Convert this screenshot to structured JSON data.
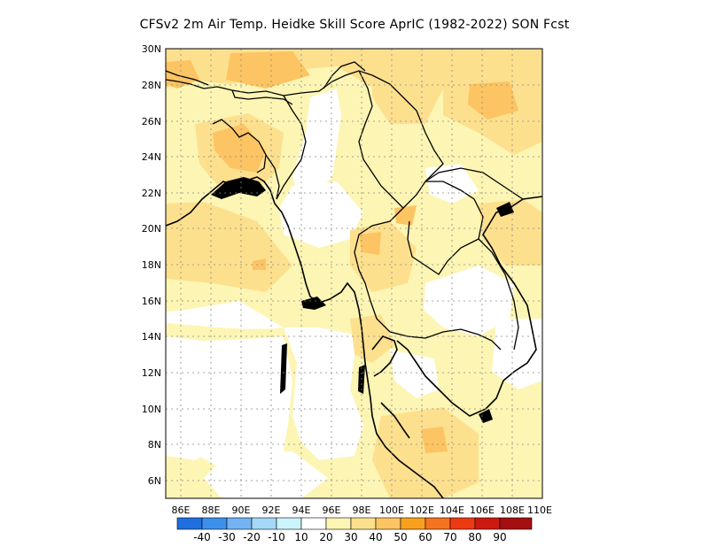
{
  "title": "CFSv2  2m Air Temp. Heidke Skill Score AprIC (1982-2022) SON Fcst",
  "map": {
    "lon_range": [
      85,
      110
    ],
    "lat_range": [
      5,
      30
    ],
    "lat_ticks": [
      "30N",
      "28N",
      "26N",
      "24N",
      "22N",
      "20N",
      "18N",
      "16N",
      "14N",
      "12N",
      "10N",
      "8N",
      "6N"
    ],
    "lon_ticks": [
      "86E",
      "88E",
      "90E",
      "92E",
      "94E",
      "96E",
      "98E",
      "100E",
      "102E",
      "104E",
      "106E",
      "108E",
      "110E"
    ],
    "grid": "dotted"
  },
  "colorbar": {
    "labels": [
      "-40",
      "-30",
      "-20",
      "-10",
      "10",
      "20",
      "30",
      "40",
      "50",
      "60",
      "70",
      "80",
      "90"
    ],
    "colors": [
      "#1f6fe0",
      "#3d8fec",
      "#74b3f2",
      "#a4d8f6",
      "#ccf4fb",
      "#ffffff",
      "#fdf5b4",
      "#fde08e",
      "#fcc462",
      "#f9a11e",
      "#f5731f",
      "#ec3b12",
      "#cc1a10",
      "#a50f0f"
    ]
  }
}
